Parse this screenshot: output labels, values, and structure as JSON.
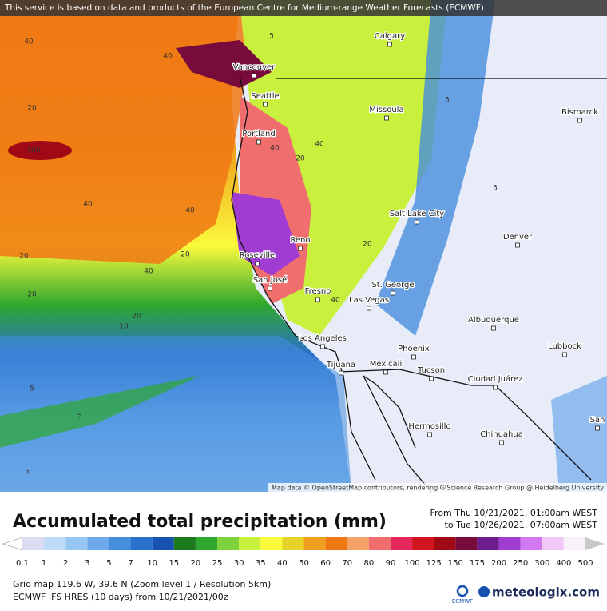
{
  "banner": "This service is based on data and products of the European Centre for Medium-range Weather Forecasts (ECMWF)",
  "cities": [
    "Calgary",
    "Vancouver",
    "Seattle",
    "Missoula",
    "Bismarck",
    "Portland",
    "Salt Lake City",
    "Denver",
    "Reno",
    "Roseville",
    "San José",
    "Fresno",
    "St. George",
    "Las Vegas",
    "Albuquerque",
    "Los Angeles",
    "Phoenix",
    "Lubbock",
    "Tijuana",
    "Mexicali",
    "Tucson",
    "Ciudad Juárez",
    "San",
    "Hermosillo",
    "Chihuahua"
  ],
  "contour_labels": [
    "40",
    "5",
    "40",
    "20",
    "100",
    "40",
    "20",
    "40",
    "20",
    "40",
    "20",
    "40",
    "20",
    "5",
    "5",
    "5",
    "10",
    "20",
    "40",
    "40",
    "20",
    "5",
    "5"
  ],
  "attribution": "Map data © OpenStreetMap contributors, rendering GIScience Research Group @ Heidelberg University",
  "title": "Accumulated total precipitation (mm)",
  "period": {
    "from": "From Thu 10/21/2021, 01:00am WEST",
    "to": "to Tue 10/26/2021, 07:00am WEST"
  },
  "legend": {
    "items": [
      {
        "label": "0.1",
        "color": "#dcdcf2"
      },
      {
        "label": "1",
        "color": "#bcdcfa"
      },
      {
        "label": "2",
        "color": "#96c6f2"
      },
      {
        "label": "3",
        "color": "#6eaaea"
      },
      {
        "label": "5",
        "color": "#468ede"
      },
      {
        "label": "7",
        "color": "#2a70cc"
      },
      {
        "label": "10",
        "color": "#1852b0"
      },
      {
        "label": "15",
        "color": "#1e7a1e"
      },
      {
        "label": "20",
        "color": "#2ea82e"
      },
      {
        "label": "25",
        "color": "#7ed23c"
      },
      {
        "label": "30",
        "color": "#c8f03c"
      },
      {
        "label": "35",
        "color": "#fafa3c"
      },
      {
        "label": "40",
        "color": "#e6d228"
      },
      {
        "label": "50",
        "color": "#f0a01e"
      },
      {
        "label": "60",
        "color": "#f07814"
      },
      {
        "label": "70",
        "color": "#f5a064"
      },
      {
        "label": "80",
        "color": "#f06e6e"
      },
      {
        "label": "90",
        "color": "#e6285a"
      },
      {
        "label": "100",
        "color": "#d2141e"
      },
      {
        "label": "125",
        "color": "#a00a14"
      },
      {
        "label": "150",
        "color": "#780a3c"
      },
      {
        "label": "175",
        "color": "#6e1e8c"
      },
      {
        "label": "200",
        "color": "#a03cd2"
      },
      {
        "label": "250",
        "color": "#d278f0"
      },
      {
        "label": "300",
        "color": "#f0c8f5"
      },
      {
        "label": "400",
        "color": "#faf0fa"
      },
      {
        "label": "500",
        "color": "#c8c8c8"
      }
    ]
  },
  "footer": {
    "grid": "Grid map 119.6 W, 39.6 N (Zoom level 1 / Resolution 5km)",
    "model": "ECMWF IFS HRES (10 days) from 10/21/2021/00z",
    "ecmwf_logo": "ECMWF",
    "brand": "meteologix.com"
  }
}
